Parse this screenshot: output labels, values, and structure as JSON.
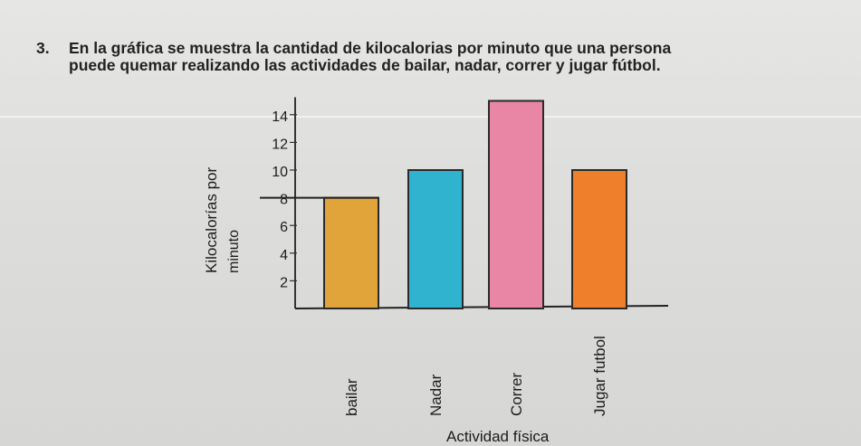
{
  "question": {
    "number": "3.",
    "line1": "En la gráfica se muestra la cantidad de kilocalorias por minuto que una persona",
    "line2": "puede quemar realizando las actividades de bailar, nadar, correr y jugar fútbol."
  },
  "chart_data": {
    "type": "bar",
    "categories": [
      "bailar",
      "Nadar",
      "Correr",
      "Jugar futbol"
    ],
    "values": [
      8,
      10,
      15,
      10
    ],
    "colors": [
      "#e1a43a",
      "#2fb3cf",
      "#ea86a5",
      "#ef7f2a"
    ],
    "ylabel_line1": "Kilocalorías por",
    "ylabel_line2": "minuto",
    "xlabel": "Actividad física",
    "yticks": [
      2,
      4,
      6,
      8,
      10,
      12,
      14
    ],
    "ylim": [
      0,
      15
    ],
    "grid": false
  }
}
